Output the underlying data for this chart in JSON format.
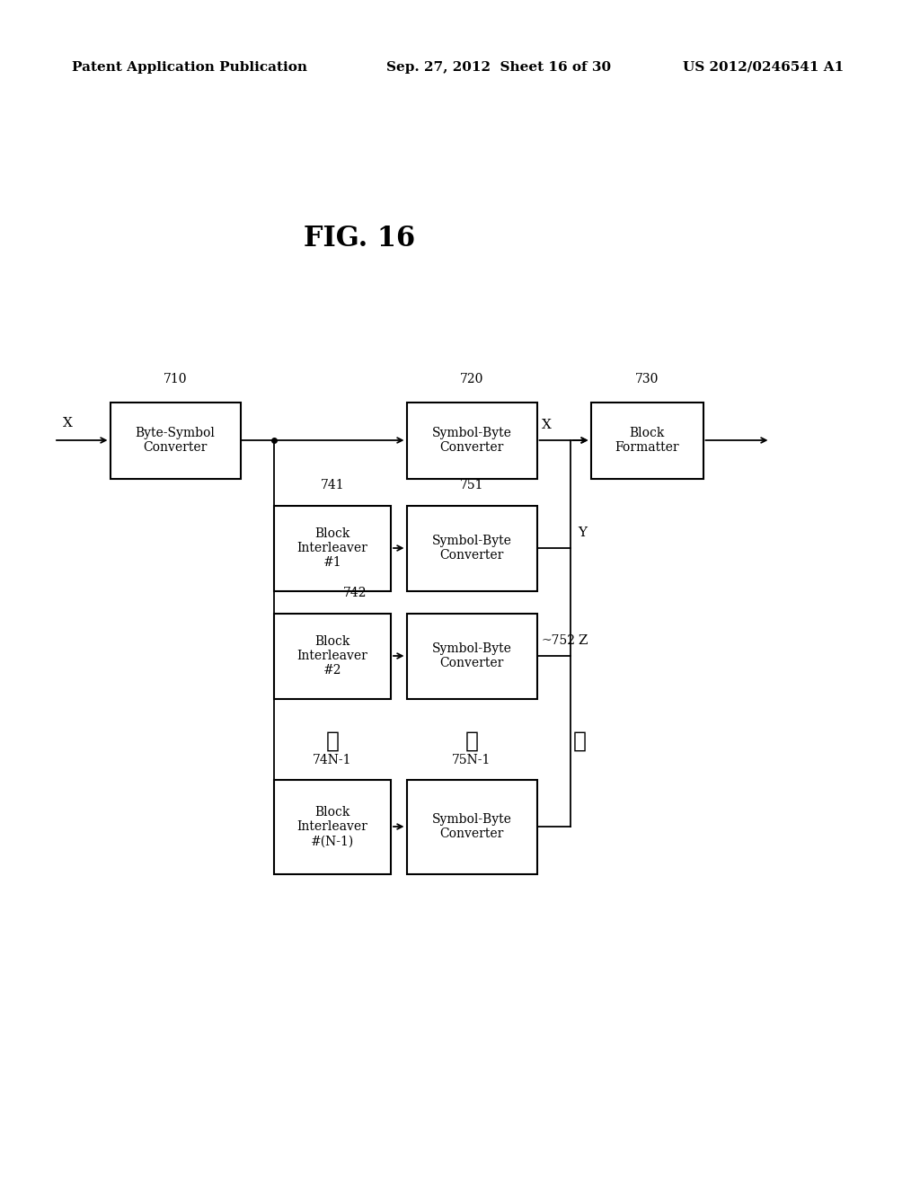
{
  "title": "FIG. 16",
  "header_left": "Patent Application Publication",
  "header_center": "Sep. 27, 2012  Sheet 16 of 30",
  "header_right": "US 2012/0246541 A1",
  "background_color": "#ffffff",
  "text_color": "#000000",
  "box_color": "#ffffff",
  "box_edge_color": "#000000"
}
